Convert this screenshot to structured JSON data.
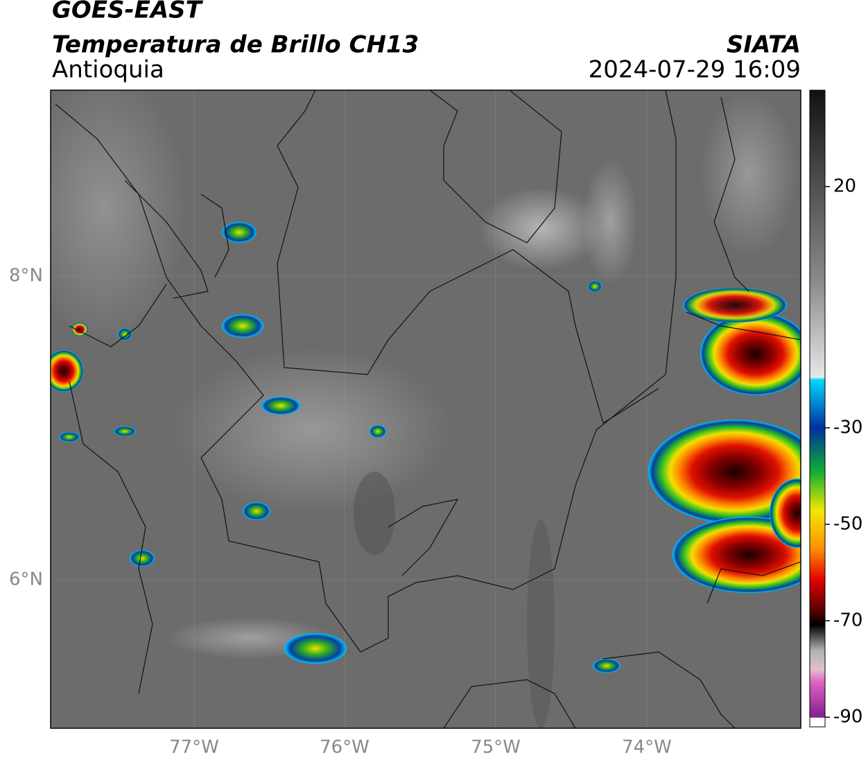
{
  "header": {
    "title": "GOES-EAST",
    "subtitle": "Temperatura de Brillo CH13",
    "region": "Antioquia",
    "source": "SIATA",
    "timestamp": "2024-07-29 16:09"
  },
  "map": {
    "lat_labels": [
      "8°N",
      "6°N"
    ],
    "lon_labels": [
      "77°W",
      "76°W",
      "75°W",
      "74°W"
    ]
  },
  "colorbar": {
    "range": [
      -92,
      40
    ],
    "ticks": [
      20,
      -30,
      -50,
      -70,
      -90
    ]
  }
}
